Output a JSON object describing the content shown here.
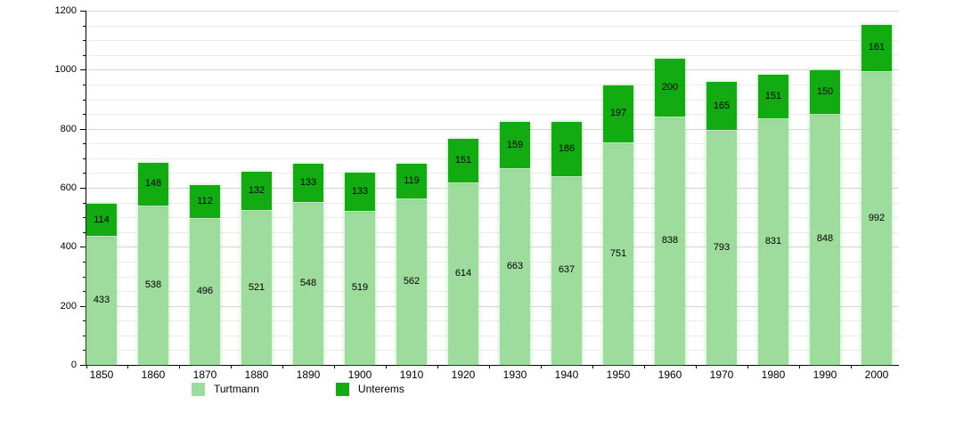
{
  "chart_data": {
    "type": "bar",
    "stacked": true,
    "title": "",
    "xlabel": "",
    "ylabel": "",
    "categories": [
      "1850",
      "1860",
      "1870",
      "1880",
      "1890",
      "1900",
      "1910",
      "1920",
      "1930",
      "1940",
      "1950",
      "1960",
      "1970",
      "1980",
      "1990",
      "2000"
    ],
    "series": [
      {
        "name": "Turtmann",
        "color": "#9edc9e",
        "values": [
          433,
          538,
          496,
          521,
          548,
          519,
          562,
          614,
          663,
          637,
          751,
          838,
          793,
          831,
          848,
          992
        ]
      },
      {
        "name": "Unterems",
        "color": "#12ab12",
        "values": [
          114,
          148,
          112,
          132,
          133,
          133,
          119,
          151,
          159,
          186,
          197,
          200,
          165,
          151,
          150,
          161
        ]
      }
    ],
    "totals": [
      547,
      686,
      608,
      653,
      681,
      652,
      681,
      765,
      822,
      823,
      948,
      1038,
      958,
      982,
      998,
      1153
    ],
    "ylim": [
      0,
      1200
    ],
    "ytick_major": 200,
    "ytick_minor": 50,
    "y_tick_labels": [
      "0",
      "200",
      "400",
      "600",
      "800",
      "1000",
      "1200"
    ],
    "grid": true,
    "legend_position": "bottom",
    "bar_value_labels_shown": true,
    "colors": {
      "grid_minor": "#ececec",
      "grid_major": "#d6d6d6",
      "axis": "#000000",
      "label_text": "#000000",
      "background": "#ffffff"
    }
  }
}
